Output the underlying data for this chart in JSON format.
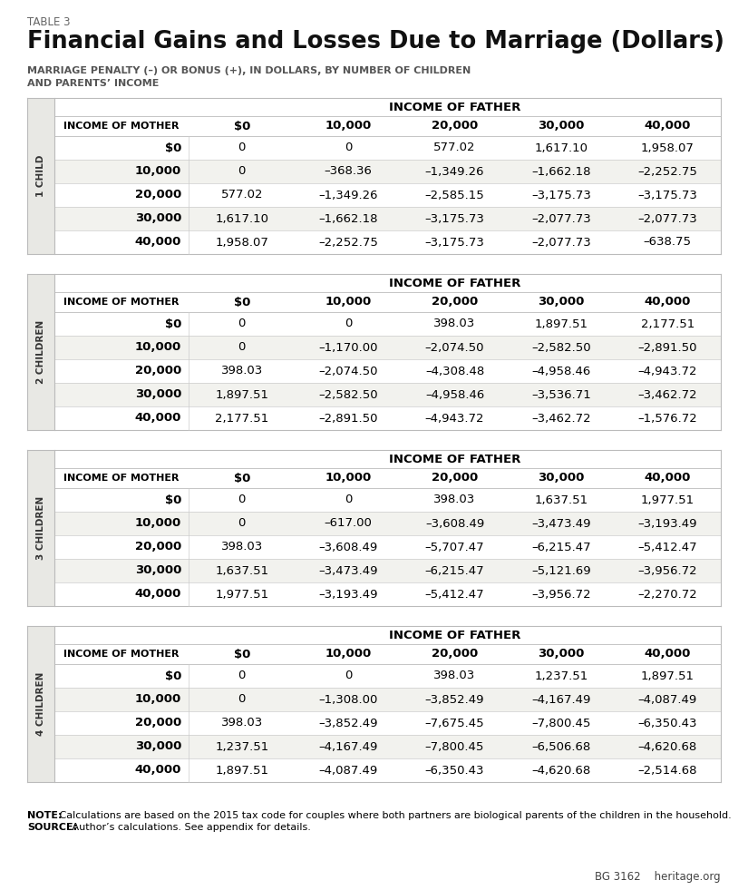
{
  "table_number": "TABLE 3",
  "title": "Financial Gains and Losses Due to Marriage (Dollars)",
  "subtitle": "MARRIAGE PENALTY (–) OR BONUS (+), IN DOLLARS, BY NUMBER OF CHILDREN\nAND PARENTS’ INCOME",
  "note_bold": "NOTE:",
  "note_text": " Calculations are based on the 2015 tax code for couples where both partners are biological parents of the children in the household.",
  "source_bold": "SOURCE:",
  "source_text": " Author’s calculations. See appendix for details.",
  "branding": "BG 3162    heritage.org",
  "col_headers": [
    "INCOME OF MOTHER",
    "$0",
    "10,000",
    "20,000",
    "30,000",
    "40,000"
  ],
  "father_header": "INCOME OF FATHER",
  "sections": [
    {
      "label": "1 CHILD",
      "rows": [
        [
          "$0",
          "0",
          "0",
          "577.02",
          "1,617.10",
          "1,958.07"
        ],
        [
          "10,000",
          "0",
          "–368.36",
          "–1,349.26",
          "–1,662.18",
          "–2,252.75"
        ],
        [
          "20,000",
          "577.02",
          "–1,349.26",
          "–2,585.15",
          "–3,175.73",
          "–3,175.73"
        ],
        [
          "30,000",
          "1,617.10",
          "–1,662.18",
          "–3,175.73",
          "–2,077.73",
          "–2,077.73"
        ],
        [
          "40,000",
          "1,958.07",
          "–2,252.75",
          "–3,175.73",
          "–2,077.73",
          "–638.75"
        ]
      ]
    },
    {
      "label": "2 CHILDREN",
      "rows": [
        [
          "$0",
          "0",
          "0",
          "398.03",
          "1,897.51",
          "2,177.51"
        ],
        [
          "10,000",
          "0",
          "–1,170.00",
          "–2,074.50",
          "–2,582.50",
          "–2,891.50"
        ],
        [
          "20,000",
          "398.03",
          "–2,074.50",
          "–4,308.48",
          "–4,958.46",
          "–4,943.72"
        ],
        [
          "30,000",
          "1,897.51",
          "–2,582.50",
          "–4,958.46",
          "–3,536.71",
          "–3,462.72"
        ],
        [
          "40,000",
          "2,177.51",
          "–2,891.50",
          "–4,943.72",
          "–3,462.72",
          "–1,576.72"
        ]
      ]
    },
    {
      "label": "3 CHILDREN",
      "rows": [
        [
          "$0",
          "0",
          "0",
          "398.03",
          "1,637.51",
          "1,977.51"
        ],
        [
          "10,000",
          "0",
          "–617.00",
          "–3,608.49",
          "–3,473.49",
          "–3,193.49"
        ],
        [
          "20,000",
          "398.03",
          "–3,608.49",
          "–5,707.47",
          "–6,215.47",
          "–5,412.47"
        ],
        [
          "30,000",
          "1,637.51",
          "–3,473.49",
          "–6,215.47",
          "–5,121.69",
          "–3,956.72"
        ],
        [
          "40,000",
          "1,977.51",
          "–3,193.49",
          "–5,412.47",
          "–3,956.72",
          "–2,270.72"
        ]
      ]
    },
    {
      "label": "4 CHILDREN",
      "rows": [
        [
          "$0",
          "0",
          "0",
          "398.03",
          "1,237.51",
          "1,897.51"
        ],
        [
          "10,000",
          "0",
          "–1,308.00",
          "–3,852.49",
          "–4,167.49",
          "–4,087.49"
        ],
        [
          "20,000",
          "398.03",
          "–3,852.49",
          "–7,675.45",
          "–7,800.45",
          "–6,350.43"
        ],
        [
          "30,000",
          "1,237.51",
          "–4,167.49",
          "–7,800.45",
          "–6,506.68",
          "–4,620.68"
        ],
        [
          "40,000",
          "1,897.51",
          "–4,087.49",
          "–6,350.43",
          "–4,620.68",
          "–2,514.68"
        ]
      ]
    }
  ],
  "bg_color": "#ffffff",
  "side_label_bg": "#e8e8e4",
  "row_alt_color": "#f2f2ee",
  "border_color": "#bbbbbb",
  "line_color": "#cccccc"
}
